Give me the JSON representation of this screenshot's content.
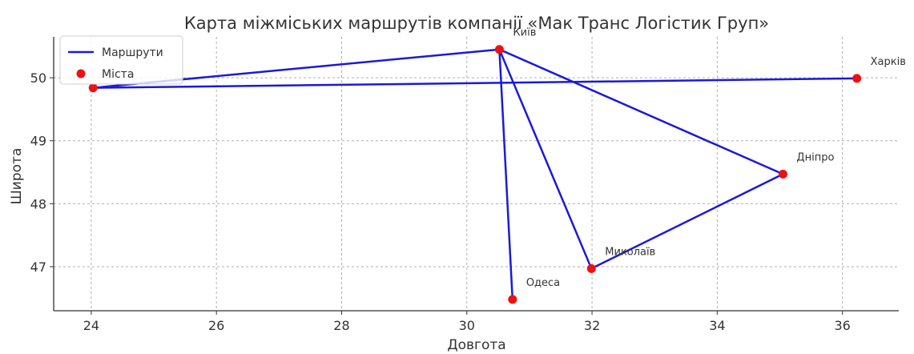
{
  "chart_data": {
    "type": "line",
    "title": "Карта міжміських маршрутів компанії «Мак Транс Логістик Груп»",
    "xlabel": "Довгота",
    "ylabel": "Широта",
    "xlim": [
      23.4,
      36.9
    ],
    "ylim": [
      46.3,
      50.65
    ],
    "xticks": [
      24,
      26,
      28,
      30,
      32,
      34,
      36
    ],
    "yticks": [
      47,
      48,
      49,
      50
    ],
    "grid": true,
    "legend": {
      "position": "top-left",
      "entries": [
        "Маршрути",
        "Міста"
      ]
    },
    "colors": {
      "route": "#1a1ad8",
      "city": "#ee1111"
    },
    "series": [
      {
        "name": "Маршрути",
        "type": "line",
        "points": [
          {
            "x": 24.03,
            "y": 49.84
          },
          {
            "x": 30.52,
            "y": 50.45
          },
          {
            "x": 35.05,
            "y": 48.47
          },
          {
            "x": 31.99,
            "y": 46.97
          },
          {
            "x": 30.52,
            "y": 50.45
          },
          {
            "x": 30.73,
            "y": 46.48
          }
        ],
        "extra_segment": [
          {
            "x": 24.03,
            "y": 49.84
          },
          {
            "x": 36.23,
            "y": 49.99
          }
        ]
      },
      {
        "name": "Міста",
        "type": "scatter",
        "points": [
          {
            "label": "",
            "x": 24.03,
            "y": 49.84
          },
          {
            "label": "Київ",
            "x": 30.52,
            "y": 50.45
          },
          {
            "label": "Харків",
            "x": 36.23,
            "y": 49.99
          },
          {
            "label": "Дніпро",
            "x": 35.05,
            "y": 48.47
          },
          {
            "label": "Миколаїв",
            "x": 31.99,
            "y": 46.97
          },
          {
            "label": "Одеса",
            "x": 30.73,
            "y": 46.48
          }
        ]
      }
    ]
  }
}
